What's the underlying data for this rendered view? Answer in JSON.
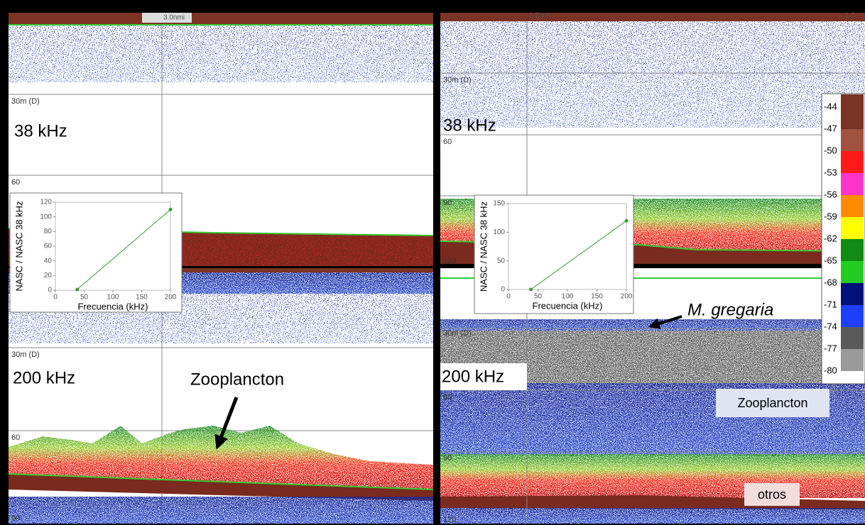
{
  "panels": [
    {
      "scale": "3.0nmi",
      "depth_labels": [
        "30m (D)",
        "60"
      ],
      "frequency": "38 kHz"
    },
    {
      "depth_labels": [
        "30m (D)",
        "60",
        "90"
      ],
      "frequency": "200 kHz",
      "annotation": "Zooplancton"
    },
    {
      "scale": "0.5nmi",
      "scale_end": "1.0",
      "depth_labels": [
        "30m (D)",
        "60",
        "90",
        "120"
      ],
      "frequency": "38 kHz"
    },
    {
      "depth_labels": [
        "30m (D)",
        "60",
        "90",
        "120"
      ],
      "frequency": "200 kHz",
      "annotations": [
        "M. gregaria",
        "Zooplancton",
        "otros"
      ]
    }
  ],
  "color_scale": {
    "labels": [
      -44,
      -47,
      -50,
      -53,
      -56,
      -59,
      -62,
      -65,
      -68,
      -71,
      -74,
      -77,
      -80
    ],
    "colors": [
      "#7a3324",
      "#a0523e",
      "#ff1a1a",
      "#ff33cc",
      "#ff8c00",
      "#ffff00",
      "#138a13",
      "#22cc22",
      "#00107a",
      "#1f3fff",
      "#5a5a5a",
      "#9a9a9a",
      "#ffffff"
    ]
  },
  "chart_data": [
    {
      "type": "line",
      "xlabel": "Frecuencia (kHz)",
      "ylabel": "NASC / NASC 38 kHz",
      "x": [
        38,
        200
      ],
      "values": [
        1,
        110
      ],
      "color": "#3a9a3a",
      "xlim": [
        0,
        200
      ],
      "xticks": [
        0,
        50,
        100,
        150,
        200
      ],
      "ylim": [
        0,
        120
      ],
      "yticks": [
        0,
        20,
        40,
        60,
        80,
        100,
        120
      ]
    },
    {
      "type": "line",
      "xlabel": "Frecuencia (kHz)",
      "ylabel": "NASC / NASC 38 kHz",
      "x": [
        38,
        200
      ],
      "values": [
        0,
        120
      ],
      "color": "#3a9a3a",
      "xlim": [
        0,
        200
      ],
      "xticks": [
        0,
        50,
        100,
        150,
        200
      ],
      "ylim": [
        0,
        150
      ],
      "yticks": [
        0,
        50,
        100,
        150
      ]
    }
  ]
}
